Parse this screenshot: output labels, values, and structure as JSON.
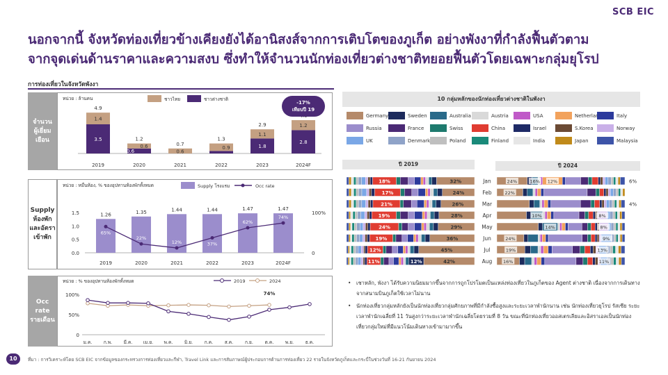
{
  "logo": "SCB EIC",
  "title_line1": "นอกจากนี้ จังหวัดท่องเที่ยวข้างเคียงยังได้อานิสงส์จากการเติบโตของภูเก็ต อย่างพังงาที่กำลังฟื้นตัวตาม",
  "title_line2": "จากจุดเด่นด้านราคาและความสงบ ซึ่งทำให้จำนวนนักท่องเที่ยวต่างชาติทยอยฟื้นตัวโดยเฉพาะกลุ่มยุโรป",
  "subtitle": "การท่องเที่ยวในจังหวัดพังงา",
  "side_labels": {
    "visitors": [
      "จำนวน",
      "ผู้เยี่ยม",
      "เยือน"
    ],
    "supply": [
      "Supply",
      "ห้องพัก",
      "และอัตรา",
      "เข้าพัก"
    ],
    "occ": [
      "Occ rate",
      "รายเดือน"
    ]
  },
  "bubble": [
    "-17%",
    "เทียบปี 19"
  ],
  "right_header": "10 กลุ่มหลักของนักท่องเที่ยวต่างชาติในพังงา",
  "year_headers": [
    "ปี 2019",
    "ปี 2024"
  ],
  "bullets": [
    "เชาหลัก, พังงา ได้รับความนิยมมากขึ้นจากการถูกโปรโมตเป็นแหล่งท่องเที่ยวในภูเก็ตของ Agent ต่างชาติ เนื่องจากการเดินทางจากสนามบินภูเก็ตใช้เวลาไม่นาน",
    "นักท่องเที่ยวกลุ่มหลักยังเป็นนักท่องเที่ยวกลุ่มศักยภาพที่มีกำลังซื้อสูงและระยะเวลาพำนักนาน เช่น นักท่องเที่ยวยุโรป รัสเซีย ระยะเวลาพำนักเฉลี่ยที่ 11 วันสูงกว่าระยะเวลาพำนักเฉลี่ยโดยรวมที่ 8 วัน ขณะที่นักท่องเที่ยวออสเตรเลียและอิสราเอลเป็นนักท่องเที่ยวกลุ่มใหม่ที่มีแนวโน้มเดินทางเข้ามามากขึ้น"
  ],
  "footer": "ที่มา : การวิเคราะห์โดย SCB EIC จากข้อมูลของกระทรวงการท่องเที่ยวและกีฬา, Travel Link และการสัมภาษณ์ผู้ประกอบการด้านการท่องเที่ยว 22 รายในจังหวัดภูเก็ตและกระบี่ในช่วงวันที่ 16-21 กันยายน 2024",
  "page_number": "10",
  "colors": {
    "purple": "#4b2a75",
    "tan": "#c4a082",
    "lavender": "#9b8dcc",
    "line_purple": "#4b2a75",
    "line_tan": "#c4a082"
  },
  "chart_data": [
    {
      "type": "bar",
      "unit": "หน่วย : ล้านคน",
      "categories": [
        "2019",
        "2020",
        "2021",
        "2022",
        "2023",
        "2024F"
      ],
      "series": [
        {
          "name": "ชาวต่างชาติ",
          "values": [
            3.5,
            0.6,
            null,
            0.3,
            1.8,
            2.8
          ]
        },
        {
          "name": "ชาวไทย",
          "values": [
            1.4,
            0.6,
            0.6,
            0.9,
            1.1,
            1.2
          ]
        }
      ],
      "segment_labels": {
        "foreign": [
          "3.5",
          "0.6",
          "",
          "",
          "1.8",
          "2.8"
        ],
        "thai": [
          "1.4",
          "0.6",
          "0.6",
          "0.9",
          "1.1",
          "1.2"
        ]
      },
      "totals": [
        "4.9",
        "1.2",
        "0.7",
        "1.3",
        "2.9",
        "4.0"
      ]
    },
    {
      "type": "bar",
      "unit": "หน่วย : หมื่นห้อง, % ของอุปทานห้องพักทั้งหมด",
      "categories": [
        "2019",
        "2020",
        "2021",
        "2022",
        "2023",
        "2024F"
      ],
      "series": [
        {
          "name": "Supply โรงแรม",
          "values": [
            1.26,
            1.35,
            1.44,
            1.44,
            1.47,
            1.47
          ]
        },
        {
          "name": "Occ rate",
          "values": [
            65,
            22,
            12,
            37,
            62,
            74
          ]
        }
      ],
      "bar_labels": [
        "1.26",
        "1.35",
        "1.44",
        "1.44",
        "1.47",
        "1.47"
      ],
      "occ_labels": [
        "65%",
        "22%",
        "12%",
        "37%",
        "62%",
        "74%"
      ],
      "left_ticks": [
        "1.5",
        "1.0",
        "0.5",
        "0.0"
      ],
      "right_ticks": [
        "100%",
        "0"
      ],
      "ylim": [
        0,
        1.5
      ]
    },
    {
      "type": "line",
      "unit": "หน่วย : % ของอุปทานห้องพักทั้งหมด",
      "categories": [
        "ม.ค.",
        "ก.พ.",
        "มี.ค.",
        "เม.ย.",
        "พ.ค.",
        "มิ.ย.",
        "ก.ค.",
        "ส.ค.",
        "ก.ย.",
        "ต.ค.",
        "พ.ย.",
        "ธ.ค."
      ],
      "series": [
        {
          "name": "2019",
          "values": [
            86,
            79,
            79,
            78,
            58,
            52,
            44,
            37,
            45,
            62,
            68,
            76
          ]
        },
        {
          "name": "2024",
          "values": [
            78,
            72,
            74,
            72,
            73,
            74,
            73,
            70,
            72,
            74,
            null,
            null
          ]
        }
      ],
      "annotation": "74%",
      "ticks": [
        "100%",
        "50%",
        "0"
      ],
      "ylim": [
        0,
        100
      ]
    },
    {
      "type": "bar",
      "subtype": "stacked-100-horizontal",
      "legend": [
        {
          "name": "Germany",
          "color": "#b58a6a"
        },
        {
          "name": "Sweden",
          "color": "#1d2b5c"
        },
        {
          "name": "Australia",
          "color": "#2a6a8a"
        },
        {
          "name": "Austria",
          "color": "#d9d9d9"
        },
        {
          "name": "USA",
          "color": "#c05ac8"
        },
        {
          "name": "Netherland",
          "color": "#f2a25c"
        },
        {
          "name": "Italy",
          "color": "#2c3a9c"
        },
        {
          "name": "Russia",
          "color": "#9b8dcc"
        },
        {
          "name": "France",
          "color": "#4b2a75"
        },
        {
          "name": "Swiss",
          "color": "#1e7a6e"
        },
        {
          "name": "China",
          "color": "#e03c31"
        },
        {
          "name": "Israel",
          "color": "#1e2a66"
        },
        {
          "name": "S.Korea",
          "color": "#6b4a34"
        },
        {
          "name": "Norway",
          "color": "#c9b0e8"
        },
        {
          "name": "UK",
          "color": "#7aa7e6"
        },
        {
          "name": "Denmark",
          "color": "#8fa3c8"
        },
        {
          "name": "Poland",
          "color": "#bfbfbf"
        },
        {
          "name": "Finland",
          "color": "#1a8a7a"
        },
        {
          "name": "India",
          "color": "#e6e6e6"
        },
        {
          "name": "Japan",
          "color": "#c08a1a"
        },
        {
          "name": "Malaysia",
          "color": "#3d54a8"
        }
      ],
      "months": [
        "Jan",
        "Feb",
        "Mar",
        "Apr",
        "May",
        "Jun",
        "Jul",
        "Aug"
      ],
      "y2019_labels": [
        [
          "18%",
          "32%"
        ],
        [
          "17%",
          "24%"
        ],
        [
          "21%",
          "26%"
        ],
        [
          "19%",
          "28%"
        ],
        [
          "24%",
          "29%"
        ],
        [
          "19%",
          "36%"
        ],
        [
          "12%",
          "45%"
        ],
        [
          "11%",
          "12%",
          "42%"
        ]
      ],
      "y2024_labels": [
        [
          "24%",
          "16%",
          "12%",
          "6%"
        ],
        [
          "22%"
        ],
        [
          "4%"
        ],
        [
          "10%",
          "8%"
        ],
        [
          "14%",
          "8%"
        ],
        [
          "24%",
          "9%"
        ],
        [
          "19%",
          "13%"
        ],
        [
          "16%",
          "11%"
        ]
      ]
    }
  ]
}
